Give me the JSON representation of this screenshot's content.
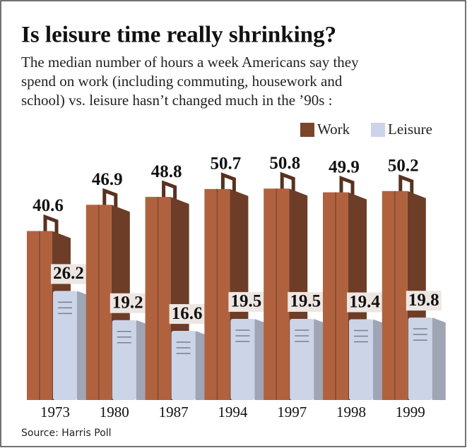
{
  "chart_data": {
    "type": "bar",
    "title": "Is leisure time really shrinking?",
    "subtitle": [
      "The median number of hours a week Americans say they",
      "spend on work (including commuting, housework and",
      "school) vs. leisure hasn’t changed much in the ’90s :"
    ],
    "source": "Source: Harris Poll",
    "categories": [
      "1973",
      "1980",
      "1987",
      "1994",
      "1997",
      "1998",
      "1999"
    ],
    "series": [
      {
        "name": "Work",
        "color": "#b0623f",
        "values": [
          40.6,
          46.9,
          48.8,
          50.7,
          50.8,
          49.9,
          50.2
        ]
      },
      {
        "name": "Leisure",
        "color": "#ccd4e8",
        "values": [
          26.2,
          19.2,
          16.6,
          19.5,
          19.5,
          19.4,
          19.8
        ]
      }
    ]
  }
}
